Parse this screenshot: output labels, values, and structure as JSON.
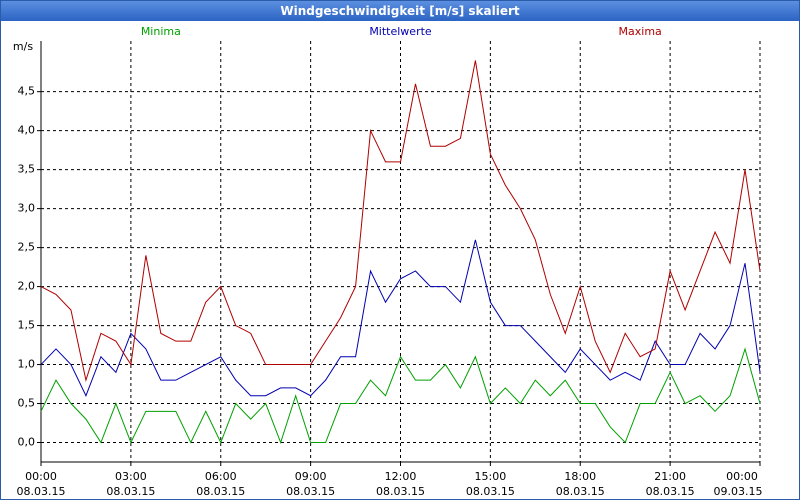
{
  "chart_data": {
    "type": "line",
    "title": "Windgeschwindigkeit [m/s] skaliert",
    "y_label": "m/s",
    "x": [
      0,
      0.5,
      1,
      1.5,
      2,
      2.5,
      3,
      3.5,
      4,
      4.5,
      5,
      5.5,
      6,
      6.5,
      7,
      7.5,
      8,
      8.5,
      9,
      9.5,
      10,
      10.5,
      11,
      11.5,
      12,
      12.5,
      13,
      13.5,
      14,
      14.5,
      15,
      15.5,
      16,
      16.5,
      17,
      17.5,
      18,
      18.5,
      19,
      19.5,
      20,
      20.5,
      21,
      21.5,
      22,
      22.5,
      23,
      23.5,
      24
    ],
    "series": [
      {
        "name": "Minima",
        "color": "#00a000",
        "values": [
          0.4,
          0.8,
          0.5,
          0.3,
          0.0,
          0.5,
          0.0,
          0.4,
          0.4,
          0.4,
          0.0,
          0.4,
          0.0,
          0.5,
          0.3,
          0.5,
          0.0,
          0.6,
          0.0,
          0.0,
          0.5,
          0.5,
          0.8,
          0.6,
          1.1,
          0.8,
          0.8,
          1.0,
          0.7,
          1.1,
          0.5,
          0.7,
          0.5,
          0.8,
          0.6,
          0.8,
          0.5,
          0.5,
          0.2,
          0.0,
          0.5,
          0.5,
          0.9,
          0.5,
          0.6,
          0.4,
          0.6,
          1.2,
          0.5
        ]
      },
      {
        "name": "Mittelwerte",
        "color": "#0000b0",
        "values": [
          1.0,
          1.2,
          1.0,
          0.6,
          1.1,
          0.9,
          1.4,
          1.2,
          0.8,
          0.8,
          0.9,
          1.0,
          1.1,
          0.8,
          0.6,
          0.6,
          0.7,
          0.7,
          0.6,
          0.8,
          1.1,
          1.1,
          2.2,
          1.8,
          2.1,
          2.2,
          2.0,
          2.0,
          1.8,
          2.6,
          1.8,
          1.5,
          1.5,
          1.3,
          1.1,
          0.9,
          1.2,
          1.0,
          0.8,
          0.9,
          0.8,
          1.3,
          1.0,
          1.0,
          1.4,
          1.2,
          1.5,
          2.3,
          0.9
        ]
      },
      {
        "name": "Maxima",
        "color": "#b00000",
        "values": [
          2.0,
          1.9,
          1.7,
          0.8,
          1.4,
          1.3,
          1.0,
          2.4,
          1.4,
          1.3,
          1.3,
          1.8,
          2.0,
          1.5,
          1.4,
          1.0,
          1.0,
          1.0,
          1.0,
          1.3,
          1.6,
          2.0,
          4.0,
          3.6,
          3.6,
          4.6,
          3.8,
          3.8,
          3.9,
          4.9,
          3.7,
          3.3,
          3.0,
          2.6,
          1.9,
          1.4,
          2.0,
          1.3,
          0.9,
          1.4,
          1.1,
          1.2,
          2.2,
          1.7,
          2.2,
          2.7,
          2.3,
          3.5,
          2.2
        ]
      }
    ],
    "xlim": [
      0,
      24
    ],
    "xticks": [
      {
        "value": 0,
        "label": "00:00"
      },
      {
        "value": 3,
        "label": "03:00"
      },
      {
        "value": 6,
        "label": "06:00"
      },
      {
        "value": 9,
        "label": "09:00"
      },
      {
        "value": 12,
        "label": "12:00"
      },
      {
        "value": 15,
        "label": "15:00"
      },
      {
        "value": 18,
        "label": "18:00"
      },
      {
        "value": 21,
        "label": "21:00"
      },
      {
        "value": 24,
        "label": "00:00"
      }
    ],
    "xtick_dates": [
      "08.03.15",
      "08.03.15",
      "08.03.15",
      "08.03.15",
      "08.03.15",
      "08.03.15",
      "08.03.15",
      "08.03.15",
      "09.03.15"
    ],
    "ylim": [
      -0.25,
      5.15
    ],
    "yticks": [
      {
        "value": 0,
        "label": "0,0"
      },
      {
        "value": 0.5,
        "label": "0,5"
      },
      {
        "value": 1,
        "label": "1,0"
      },
      {
        "value": 1.5,
        "label": "1,5"
      },
      {
        "value": 2,
        "label": "2,0"
      },
      {
        "value": 2.5,
        "label": "2,5"
      },
      {
        "value": 3,
        "label": "3,0"
      },
      {
        "value": 3.5,
        "label": "3,5"
      },
      {
        "value": 4,
        "label": "4,0"
      },
      {
        "value": 4.5,
        "label": "4,5"
      }
    ],
    "grid": true
  }
}
